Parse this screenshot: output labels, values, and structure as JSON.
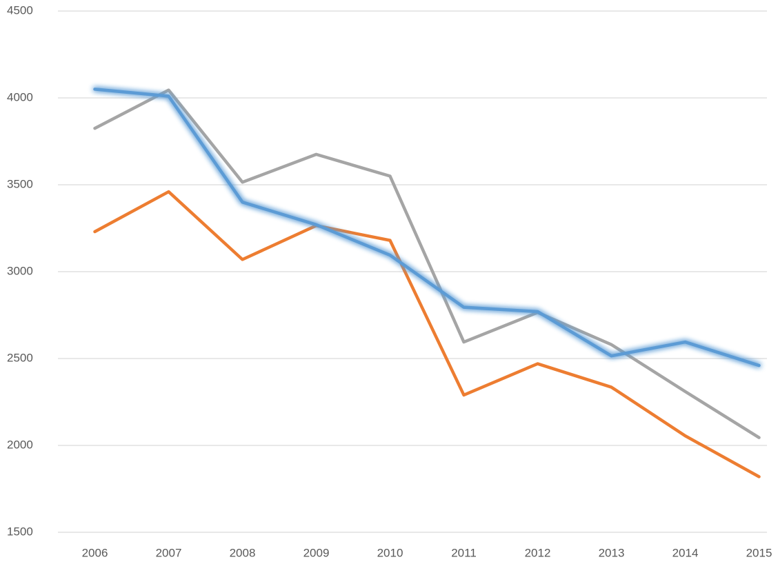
{
  "chart_data": {
    "type": "line",
    "categories": [
      "2006",
      "2007",
      "2008",
      "2009",
      "2010",
      "2011",
      "2012",
      "2013",
      "2014",
      "2015"
    ],
    "series": [
      {
        "color": "#ed7d31",
        "values": [
          3230,
          3460,
          3070,
          3265,
          3180,
          2290,
          2470,
          2335,
          2055,
          1820
        ]
      },
      {
        "color": "#a5a5a5",
        "values": [
          3825,
          4045,
          3515,
          3675,
          3550,
          2595,
          2765,
          2580,
          2310,
          2045
        ]
      },
      {
        "color": "#5b9bd5",
        "glow": true,
        "values": [
          4050,
          4010,
          3400,
          3270,
          3095,
          2795,
          2770,
          2515,
          2595,
          2460
        ]
      }
    ],
    "ylim": [
      1500,
      4500
    ],
    "yticks": [
      1500,
      2000,
      2500,
      3000,
      3500,
      4000,
      4500
    ],
    "grid": true
  }
}
